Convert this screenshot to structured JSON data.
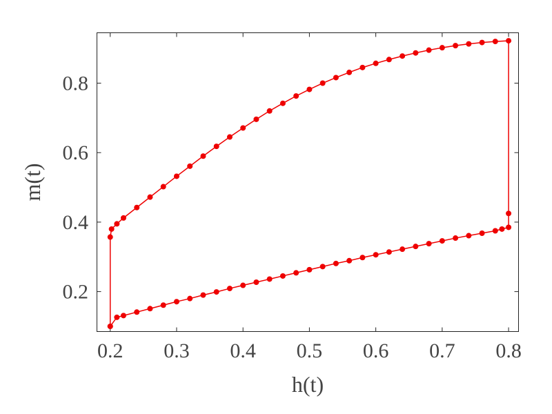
{
  "chart_data": {
    "type": "scatter",
    "title": "",
    "xlabel": "h(t)",
    "ylabel": "m(t)",
    "xlim": [
      0.18,
      0.815
    ],
    "ylim": [
      0.085,
      0.945
    ],
    "xticks": [
      0.2,
      0.3,
      0.4,
      0.5,
      0.6,
      0.7,
      0.8
    ],
    "xtick_labels": [
      "0.2",
      "0.3",
      "0.4",
      "0.5",
      "0.6",
      "0.7",
      "0.8"
    ],
    "yticks": [
      0.2,
      0.4,
      0.6,
      0.8
    ],
    "ytick_labels": [
      "0.2",
      "0.4",
      "0.6",
      "0.8"
    ],
    "grid": false,
    "legend": "none",
    "color": "#ee0000",
    "series": [
      {
        "points": [
          [
            0.2,
            0.1
          ],
          [
            0.2,
            0.357
          ],
          [
            0.202,
            0.38
          ],
          [
            0.21,
            0.395
          ],
          [
            0.22,
            0.412
          ],
          [
            0.24,
            0.442
          ],
          [
            0.26,
            0.472
          ],
          [
            0.28,
            0.502
          ],
          [
            0.3,
            0.532
          ],
          [
            0.32,
            0.561
          ],
          [
            0.34,
            0.59
          ],
          [
            0.36,
            0.618
          ],
          [
            0.38,
            0.645
          ],
          [
            0.4,
            0.671
          ],
          [
            0.42,
            0.696
          ],
          [
            0.44,
            0.72
          ],
          [
            0.46,
            0.742
          ],
          [
            0.48,
            0.763
          ],
          [
            0.5,
            0.782
          ],
          [
            0.52,
            0.8
          ],
          [
            0.54,
            0.816
          ],
          [
            0.56,
            0.831
          ],
          [
            0.58,
            0.845
          ],
          [
            0.6,
            0.857
          ],
          [
            0.62,
            0.868
          ],
          [
            0.64,
            0.878
          ],
          [
            0.66,
            0.887
          ],
          [
            0.68,
            0.895
          ],
          [
            0.7,
            0.902
          ],
          [
            0.72,
            0.908
          ],
          [
            0.74,
            0.913
          ],
          [
            0.76,
            0.917
          ],
          [
            0.78,
            0.92
          ],
          [
            0.8,
            0.922
          ],
          [
            0.8,
            0.425
          ],
          [
            0.8,
            0.385
          ],
          [
            0.79,
            0.38
          ],
          [
            0.78,
            0.375
          ],
          [
            0.76,
            0.368
          ],
          [
            0.74,
            0.361
          ],
          [
            0.72,
            0.354
          ],
          [
            0.7,
            0.346
          ],
          [
            0.68,
            0.338
          ],
          [
            0.66,
            0.33
          ],
          [
            0.64,
            0.322
          ],
          [
            0.62,
            0.314
          ],
          [
            0.6,
            0.306
          ],
          [
            0.58,
            0.298
          ],
          [
            0.56,
            0.289
          ],
          [
            0.54,
            0.281
          ],
          [
            0.52,
            0.272
          ],
          [
            0.5,
            0.263
          ],
          [
            0.48,
            0.254
          ],
          [
            0.46,
            0.245
          ],
          [
            0.44,
            0.236
          ],
          [
            0.42,
            0.227
          ],
          [
            0.4,
            0.218
          ],
          [
            0.38,
            0.209
          ],
          [
            0.36,
            0.199
          ],
          [
            0.34,
            0.19
          ],
          [
            0.32,
            0.18
          ],
          [
            0.3,
            0.171
          ],
          [
            0.28,
            0.161
          ],
          [
            0.26,
            0.151
          ],
          [
            0.24,
            0.141
          ],
          [
            0.22,
            0.131
          ],
          [
            0.21,
            0.126
          ],
          [
            0.2,
            0.1
          ]
        ]
      }
    ]
  }
}
